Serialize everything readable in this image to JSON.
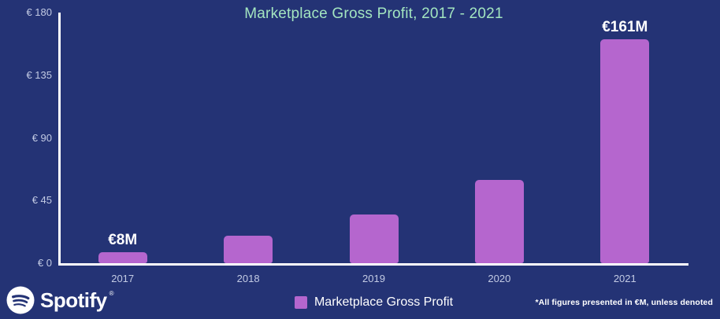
{
  "colors": {
    "background": "#243375",
    "bar": "#B566CE",
    "title": "#A3E5C0",
    "axis_line": "#FFFFFF",
    "tick_label": "#C3CBE4",
    "data_label": "#FFFFFF",
    "legend_text": "#FFFFFF",
    "footnote": "#FFFFFF"
  },
  "chart_data": {
    "type": "bar",
    "title": "Marketplace Gross Profit, 2017 - 2021",
    "categories": [
      "2017",
      "2018",
      "2019",
      "2020",
      "2021"
    ],
    "values": [
      8,
      20,
      35,
      60,
      161
    ],
    "bar_labels": [
      "€8M",
      null,
      null,
      null,
      "€161M"
    ],
    "xlabel": "",
    "ylabel": "",
    "y_ticks": [
      0,
      45,
      90,
      135,
      180
    ],
    "y_tick_labels": [
      "€ 0",
      "€ 45",
      "€ 90",
      "€ 135",
      "€ 180"
    ],
    "ylim": [
      0,
      180
    ],
    "grid": false,
    "legend": [
      {
        "label": "Marketplace Gross Profit",
        "color": "#B566CE"
      }
    ],
    "legend_position": "bottom"
  },
  "footer": {
    "brand": "Spotify",
    "brand_mark": "®",
    "footnote": "*All figures presented in €M, unless denoted"
  }
}
